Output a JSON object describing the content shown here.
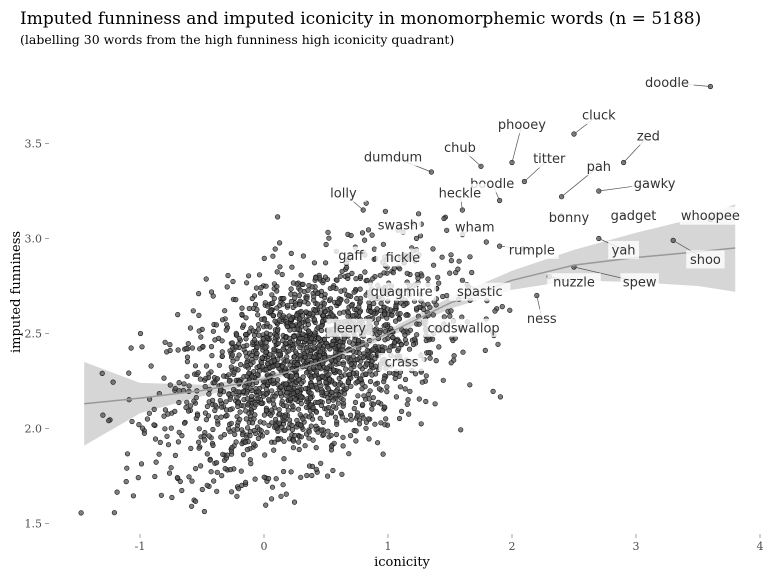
{
  "chart_data": {
    "type": "scatter",
    "title": "Imputed funniness and imputed iconicity in monomorphemic words (n = 5188)",
    "subtitle": "(labelling 30 words from the high funniness high iconicity quadrant)",
    "xlabel": "iconicity",
    "ylabel": "imputed funniness",
    "xlim": [
      -1.5,
      4.0
    ],
    "ylim": [
      1.45,
      3.95
    ],
    "x_ticks": [
      -1,
      0,
      1,
      2,
      3,
      4
    ],
    "y_ticks": [
      1.5,
      2.0,
      2.5,
      3.0,
      3.5
    ],
    "x_tick_labels": [
      "-1",
      "0",
      "1",
      "2",
      "3",
      "4"
    ],
    "y_tick_labels": [
      "1.5",
      "2.0",
      "2.5",
      "3.0",
      "3.5"
    ],
    "grid": false,
    "point_color": "#555555",
    "ribbon_color": "#cccccc",
    "smooth_color": "#999999",
    "point_cloud": {
      "n": 5188,
      "centroid": [
        0.35,
        2.35
      ],
      "sd": [
        0.55,
        0.28
      ],
      "correlation": 0.45
    },
    "smooth_line": {
      "x": [
        -1.45,
        -1.0,
        -0.5,
        0.0,
        0.5,
        1.0,
        1.5,
        2.0,
        2.5,
        3.0,
        3.5,
        3.8
      ],
      "y": [
        2.13,
        2.16,
        2.2,
        2.26,
        2.36,
        2.5,
        2.66,
        2.78,
        2.86,
        2.9,
        2.93,
        2.95
      ],
      "ci_half_width": [
        0.22,
        0.08,
        0.03,
        0.015,
        0.015,
        0.02,
        0.03,
        0.05,
        0.08,
        0.13,
        0.18,
        0.23
      ]
    },
    "labelled_words": [
      {
        "word": "doodle",
        "x": 3.6,
        "y": 3.8,
        "label_x": 3.25,
        "label_y": 3.82,
        "boxed": false
      },
      {
        "word": "cluck",
        "x": 2.5,
        "y": 3.55,
        "label_x": 2.7,
        "label_y": 3.65,
        "boxed": false
      },
      {
        "word": "phooey",
        "x": 2.0,
        "y": 3.4,
        "label_x": 2.08,
        "label_y": 3.6,
        "boxed": false
      },
      {
        "word": "zed",
        "x": 2.9,
        "y": 3.4,
        "label_x": 3.1,
        "label_y": 3.54,
        "boxed": false
      },
      {
        "word": "chub",
        "x": 1.75,
        "y": 3.38,
        "label_x": 1.58,
        "label_y": 3.48,
        "boxed": false
      },
      {
        "word": "dumdum",
        "x": 1.35,
        "y": 3.35,
        "label_x": 1.04,
        "label_y": 3.43,
        "boxed": false
      },
      {
        "word": "titter",
        "x": 2.1,
        "y": 3.3,
        "label_x": 2.3,
        "label_y": 3.42,
        "boxed": false
      },
      {
        "word": "pah",
        "x": 2.4,
        "y": 3.22,
        "label_x": 2.7,
        "label_y": 3.38,
        "boxed": false
      },
      {
        "word": "boodle",
        "x": 1.9,
        "y": 3.2,
        "label_x": 1.84,
        "label_y": 3.29,
        "boxed": false
      },
      {
        "word": "gawky",
        "x": 2.7,
        "y": 3.25,
        "label_x": 3.15,
        "label_y": 3.29,
        "boxed": false
      },
      {
        "word": "heckle",
        "x": 1.6,
        "y": 3.15,
        "label_x": 1.58,
        "label_y": 3.24,
        "boxed": false
      },
      {
        "word": "lolly",
        "x": 0.8,
        "y": 3.15,
        "label_x": 0.64,
        "label_y": 3.24,
        "boxed": false
      },
      {
        "word": "bonny",
        "x": 2.4,
        "y": 3.12,
        "label_x": 2.46,
        "label_y": 3.11,
        "boxed": false
      },
      {
        "word": "gadget",
        "x": 2.9,
        "y": 3.12,
        "label_x": 2.98,
        "label_y": 3.12,
        "boxed": false
      },
      {
        "word": "whoopee",
        "x": 3.6,
        "y": 3.1,
        "label_x": 3.6,
        "label_y": 3.12,
        "boxed": false
      },
      {
        "word": "swash",
        "x": 1.2,
        "y": 3.08,
        "label_x": 1.08,
        "label_y": 3.07,
        "boxed": false
      },
      {
        "word": "wham",
        "x": 1.6,
        "y": 3.02,
        "label_x": 1.7,
        "label_y": 3.06,
        "boxed": false
      },
      {
        "word": "rumple",
        "x": 1.9,
        "y": 2.96,
        "label_x": 2.16,
        "label_y": 2.94,
        "boxed": false
      },
      {
        "word": "yah",
        "x": 2.7,
        "y": 3.0,
        "label_x": 2.9,
        "label_y": 2.94,
        "boxed": false
      },
      {
        "word": "gaff",
        "x": 0.8,
        "y": 2.93,
        "label_x": 0.7,
        "label_y": 2.91,
        "boxed": false
      },
      {
        "word": "fickle",
        "x": 1.1,
        "y": 2.9,
        "label_x": 1.12,
        "label_y": 2.9,
        "boxed": false
      },
      {
        "word": "shoo",
        "x": 3.3,
        "y": 2.99,
        "label_x": 3.56,
        "label_y": 2.89,
        "boxed": true
      },
      {
        "word": "nuzzle",
        "x": 2.3,
        "y": 2.8,
        "label_x": 2.5,
        "label_y": 2.77,
        "boxed": false
      },
      {
        "word": "spew",
        "x": 2.5,
        "y": 2.85,
        "label_x": 3.03,
        "label_y": 2.77,
        "boxed": false
      },
      {
        "word": "quagmire",
        "x": 1.1,
        "y": 2.72,
        "label_x": 1.11,
        "label_y": 2.72,
        "boxed": false
      },
      {
        "word": "spastic",
        "x": 1.6,
        "y": 2.78,
        "label_x": 1.74,
        "label_y": 2.72,
        "boxed": false
      },
      {
        "word": "ness",
        "x": 2.2,
        "y": 2.7,
        "label_x": 2.24,
        "label_y": 2.58,
        "boxed": false
      },
      {
        "word": "leery",
        "x": 0.7,
        "y": 2.52,
        "label_x": 0.69,
        "label_y": 2.53,
        "boxed": true
      },
      {
        "word": "codswallop",
        "x": 1.45,
        "y": 2.55,
        "label_x": 1.61,
        "label_y": 2.53,
        "boxed": false
      },
      {
        "word": "crass",
        "x": 1.1,
        "y": 2.36,
        "label_x": 1.11,
        "label_y": 2.35,
        "boxed": true
      }
    ]
  }
}
